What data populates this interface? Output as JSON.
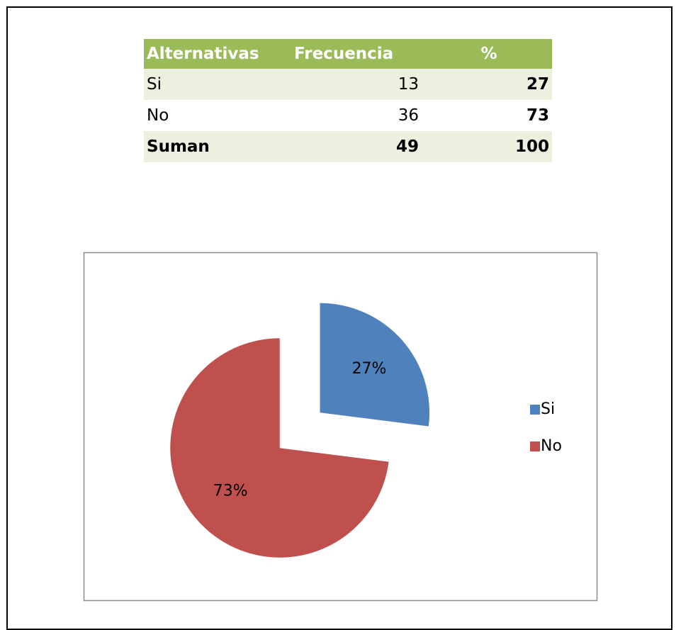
{
  "table": {
    "header": [
      "Alternativas",
      "Frecuencia",
      "%"
    ],
    "rows": [
      [
        "Si",
        "13",
        "27"
      ],
      [
        "No",
        "36",
        "73"
      ],
      [
        "Suman",
        "49",
        "100"
      ]
    ]
  },
  "chart_data": {
    "type": "pie",
    "categories": [
      "Si",
      "No"
    ],
    "values": [
      27,
      73
    ],
    "value_labels": [
      "27%",
      "73%"
    ],
    "colors": [
      "#4f81bd",
      "#c0504d"
    ],
    "legend": "right"
  }
}
